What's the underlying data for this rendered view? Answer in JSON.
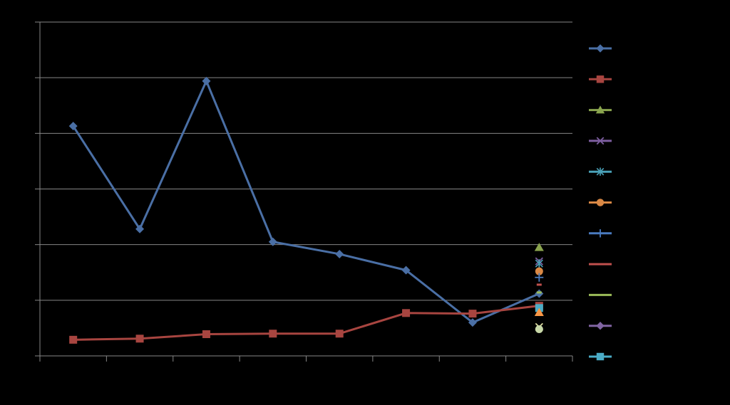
{
  "chart_data": {
    "type": "line",
    "title": "",
    "xlabel": "",
    "ylabel": "",
    "x": [
      1,
      2,
      3,
      4,
      5,
      6,
      7,
      8
    ],
    "ylim": [
      0,
      6
    ],
    "grid": true,
    "legend_position": "right",
    "series": [
      {
        "color": "#4a6fa5",
        "marker": "diamond",
        "values": [
          4.13,
          2.28,
          4.94,
          2.05,
          1.83,
          1.54,
          0.6,
          1.12
        ]
      },
      {
        "color": "#a84540",
        "marker": "square",
        "values": [
          0.29,
          0.31,
          0.39,
          0.4,
          0.4,
          0.77,
          0.76,
          0.9
        ]
      }
    ],
    "extra_points": [
      {
        "color": "#8aa44e",
        "marker": "triangle",
        "x": 8,
        "y": 1.95
      },
      {
        "color": "#7d5ea0",
        "marker": "x",
        "x": 8,
        "y": 1.7
      },
      {
        "color": "#4aa1b8",
        "marker": "star",
        "x": 8,
        "y": 1.66
      },
      {
        "color": "#d98845",
        "marker": "circle",
        "x": 8,
        "y": 1.52
      },
      {
        "color": "#4a7bc0",
        "marker": "plus",
        "x": 8,
        "y": 1.41
      },
      {
        "color": "#c0504d",
        "marker": "dash",
        "x": 8,
        "y": 1.28
      },
      {
        "color": "#9bbb59",
        "marker": "dash",
        "x": 8,
        "y": 1.14
      },
      {
        "color": "#4bacc6",
        "marker": "square",
        "x": 8,
        "y": 0.86
      },
      {
        "color": "#f79646",
        "marker": "triangle",
        "x": 8,
        "y": 0.78
      },
      {
        "color": "#dcdca0",
        "marker": "x",
        "x": 8,
        "y": 0.52
      },
      {
        "color": "#c8d8a8",
        "marker": "circle",
        "x": 8,
        "y": 0.48
      }
    ],
    "legend": [
      {
        "color": "#4a6fa5",
        "marker": "diamond"
      },
      {
        "color": "#a84540",
        "marker": "square"
      },
      {
        "color": "#8aa44e",
        "marker": "triangle"
      },
      {
        "color": "#7d5ea0",
        "marker": "x"
      },
      {
        "color": "#4aa1b8",
        "marker": "star"
      },
      {
        "color": "#d98845",
        "marker": "circle"
      },
      {
        "color": "#4a7bc0",
        "marker": "plus"
      },
      {
        "color": "#c0504d",
        "marker": "none"
      },
      {
        "color": "#9bbb59",
        "marker": "none"
      },
      {
        "color": "#8064a2",
        "marker": "diamond"
      },
      {
        "color": "#4bacc6",
        "marker": "square"
      }
    ]
  }
}
